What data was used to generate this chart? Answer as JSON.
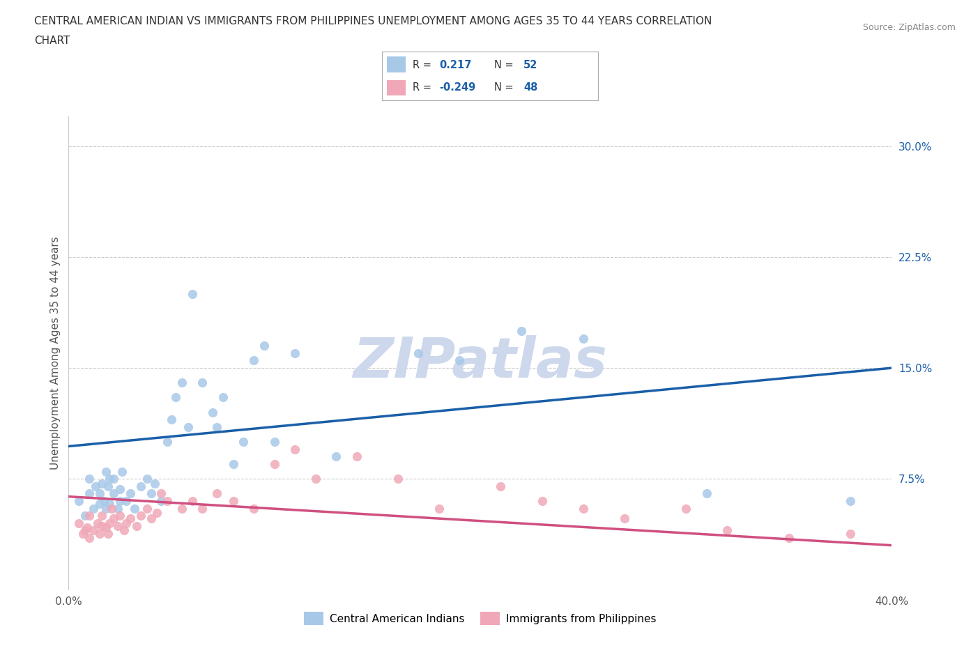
{
  "title_line1": "CENTRAL AMERICAN INDIAN VS IMMIGRANTS FROM PHILIPPINES UNEMPLOYMENT AMONG AGES 35 TO 44 YEARS CORRELATION",
  "title_line2": "CHART",
  "source": "Source: ZipAtlas.com",
  "ylabel": "Unemployment Among Ages 35 to 44 years",
  "xlim": [
    0.0,
    0.4
  ],
  "ylim": [
    0.0,
    0.32
  ],
  "xticks": [
    0.0,
    0.1,
    0.2,
    0.3,
    0.4
  ],
  "yticks": [
    0.0,
    0.075,
    0.15,
    0.225,
    0.3
  ],
  "ytick_labels": [
    "",
    "7.5%",
    "15.0%",
    "22.5%",
    "30.0%"
  ],
  "xtick_labels": [
    "0.0%",
    "",
    "",
    "",
    "40.0%"
  ],
  "grid_color": "#cccccc",
  "background_color": "#ffffff",
  "blue_color": "#a8c8e8",
  "blue_line_color": "#1a5fa8",
  "pink_color": "#f0a8b8",
  "pink_line_color": "#d05080",
  "legend_text_color": "#1a5fa8",
  "R_blue": "0.217",
  "N_blue": "52",
  "R_pink": "-0.249",
  "N_pink": "48",
  "legend_label_blue": "Central American Indians",
  "legend_label_pink": "Immigrants from Philippines",
  "blue_line_x0": 0.0,
  "blue_line_y0": 0.097,
  "blue_line_x1": 0.4,
  "blue_line_y1": 0.15,
  "pink_line_x0": 0.0,
  "pink_line_y0": 0.063,
  "pink_line_x1": 0.4,
  "pink_line_y1": 0.03,
  "blue_scatter_x": [
    0.005,
    0.008,
    0.01,
    0.01,
    0.012,
    0.013,
    0.015,
    0.015,
    0.016,
    0.017,
    0.018,
    0.018,
    0.019,
    0.02,
    0.02,
    0.022,
    0.022,
    0.024,
    0.025,
    0.025,
    0.026,
    0.028,
    0.03,
    0.032,
    0.035,
    0.038,
    0.04,
    0.042,
    0.045,
    0.048,
    0.05,
    0.052,
    0.055,
    0.058,
    0.06,
    0.065,
    0.07,
    0.072,
    0.075,
    0.08,
    0.085,
    0.09,
    0.095,
    0.1,
    0.11,
    0.13,
    0.17,
    0.19,
    0.22,
    0.25,
    0.31,
    0.38
  ],
  "blue_scatter_y": [
    0.06,
    0.05,
    0.065,
    0.075,
    0.055,
    0.07,
    0.058,
    0.065,
    0.072,
    0.06,
    0.055,
    0.08,
    0.07,
    0.058,
    0.075,
    0.065,
    0.075,
    0.055,
    0.06,
    0.068,
    0.08,
    0.06,
    0.065,
    0.055,
    0.07,
    0.075,
    0.065,
    0.072,
    0.06,
    0.1,
    0.115,
    0.13,
    0.14,
    0.11,
    0.2,
    0.14,
    0.12,
    0.11,
    0.13,
    0.085,
    0.1,
    0.155,
    0.165,
    0.1,
    0.16,
    0.09,
    0.16,
    0.155,
    0.175,
    0.17,
    0.065,
    0.06
  ],
  "pink_scatter_x": [
    0.005,
    0.007,
    0.008,
    0.009,
    0.01,
    0.01,
    0.012,
    0.014,
    0.015,
    0.016,
    0.016,
    0.018,
    0.019,
    0.02,
    0.021,
    0.022,
    0.024,
    0.025,
    0.027,
    0.028,
    0.03,
    0.033,
    0.035,
    0.038,
    0.04,
    0.043,
    0.045,
    0.048,
    0.055,
    0.06,
    0.065,
    0.072,
    0.08,
    0.09,
    0.1,
    0.11,
    0.12,
    0.14,
    0.16,
    0.18,
    0.21,
    0.23,
    0.25,
    0.27,
    0.3,
    0.32,
    0.35,
    0.38
  ],
  "pink_scatter_y": [
    0.045,
    0.038,
    0.04,
    0.042,
    0.035,
    0.05,
    0.04,
    0.045,
    0.038,
    0.043,
    0.05,
    0.042,
    0.038,
    0.045,
    0.055,
    0.048,
    0.043,
    0.05,
    0.04,
    0.045,
    0.048,
    0.043,
    0.05,
    0.055,
    0.048,
    0.052,
    0.065,
    0.06,
    0.055,
    0.06,
    0.055,
    0.065,
    0.06,
    0.055,
    0.085,
    0.095,
    0.075,
    0.09,
    0.075,
    0.055,
    0.07,
    0.06,
    0.055,
    0.048,
    0.055,
    0.04,
    0.035,
    0.038
  ],
  "watermark_text": "ZIPatlas",
  "watermark_color": "#cdd8ec",
  "watermark_fontsize": 58
}
